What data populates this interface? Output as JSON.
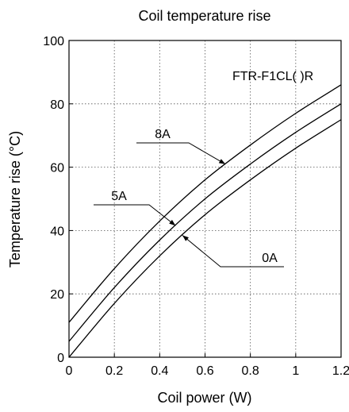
{
  "chart_data": {
    "type": "line",
    "title": "Coil temperature rise",
    "xlabel": "Coil power (W)",
    "ylabel": "Temperature rise (°C)",
    "xlim": [
      0,
      1.2
    ],
    "ylim": [
      0,
      100
    ],
    "x_ticks": [
      "0",
      "0.2",
      "0.4",
      "0.6",
      "0.8",
      "1",
      "1.2"
    ],
    "y_ticks": [
      "0",
      "20",
      "40",
      "60",
      "80",
      "100"
    ],
    "grid": true,
    "annotation": "FTR-F1CL( )R",
    "series": [
      {
        "name": "0A",
        "x": [
          0,
          0.2,
          0.4,
          0.6,
          0.8,
          1.0,
          1.2
        ],
        "y": [
          0,
          17,
          32,
          45,
          56,
          66,
          75
        ]
      },
      {
        "name": "5A",
        "x": [
          0,
          0.2,
          0.4,
          0.6,
          0.8,
          1.0,
          1.2
        ],
        "y": [
          5,
          22,
          37,
          50,
          61,
          71,
          80
        ]
      },
      {
        "name": "8A",
        "x": [
          0,
          0.2,
          0.4,
          0.6,
          0.8,
          1.0,
          1.2
        ],
        "y": [
          11,
          28,
          43,
          56,
          67,
          77,
          86
        ]
      }
    ]
  }
}
